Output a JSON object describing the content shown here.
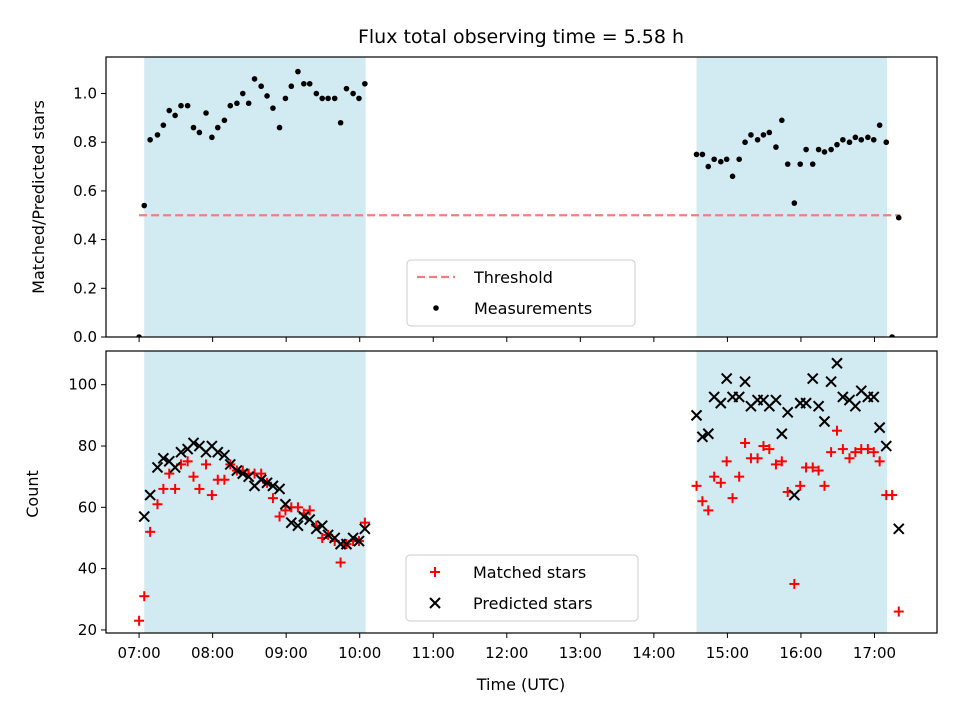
{
  "chart_data": {
    "type": "scatter",
    "title": "Flux total observing time = 5.58 h",
    "xlabel": "Time (UTC)",
    "x_ticks": [
      "07:00",
      "08:00",
      "09:00",
      "10:00",
      "11:00",
      "12:00",
      "13:00",
      "14:00",
      "15:00",
      "16:00",
      "17:00"
    ],
    "x_range_hours": [
      6.55,
      17.85
    ],
    "shaded_intervals_hours": [
      [
        7.07,
        10.08
      ],
      [
        14.58,
        17.17
      ]
    ],
    "shade_color": "#add8e6",
    "panels": [
      {
        "ylabel": "Matched/Predicted stars",
        "ylim": [
          0,
          1.15
        ],
        "y_ticks": [
          0.0,
          0.2,
          0.4,
          0.6,
          0.8,
          1.0
        ],
        "threshold": {
          "value": 0.5,
          "x_range_hours": [
            7.0,
            17.35
          ],
          "color": "#f08080",
          "label": "Threshold"
        },
        "legend": [
          "Threshold",
          "Measurements"
        ],
        "series": [
          {
            "name": "Measurements",
            "color": "#000000",
            "x_hours": [
              7.0,
              7.07,
              7.15,
              7.25,
              7.33,
              7.41,
              7.49,
              7.57,
              7.66,
              7.74,
              7.82,
              7.91,
              7.99,
              8.07,
              8.16,
              8.24,
              8.33,
              8.41,
              8.49,
              8.57,
              8.66,
              8.74,
              8.82,
              8.91,
              8.99,
              9.07,
              9.16,
              9.24,
              9.32,
              9.41,
              9.49,
              9.57,
              9.66,
              9.74,
              9.82,
              9.91,
              9.99,
              10.07,
              14.58,
              14.66,
              14.74,
              14.82,
              14.91,
              14.99,
              15.07,
              15.16,
              15.24,
              15.32,
              15.41,
              15.49,
              15.57,
              15.66,
              15.74,
              15.82,
              15.91,
              15.99,
              16.07,
              16.16,
              16.24,
              16.32,
              16.41,
              16.49,
              16.57,
              16.66,
              16.74,
              16.82,
              16.91,
              16.99,
              17.07,
              17.16,
              17.24,
              17.33
            ],
            "y": [
              0.0,
              0.54,
              0.81,
              0.83,
              0.87,
              0.93,
              0.91,
              0.95,
              0.95,
              0.86,
              0.84,
              0.92,
              0.82,
              0.86,
              0.89,
              0.95,
              0.96,
              1.0,
              0.96,
              1.06,
              1.03,
              0.99,
              0.94,
              0.86,
              0.98,
              1.03,
              1.09,
              1.04,
              1.04,
              1.0,
              0.98,
              0.98,
              0.98,
              0.88,
              1.02,
              1.0,
              0.98,
              1.04,
              0.75,
              0.75,
              0.7,
              0.73,
              0.72,
              0.73,
              0.66,
              0.73,
              0.8,
              0.83,
              0.81,
              0.83,
              0.84,
              0.78,
              0.89,
              0.71,
              0.55,
              0.71,
              0.77,
              0.71,
              0.77,
              0.76,
              0.77,
              0.79,
              0.81,
              0.8,
              0.82,
              0.81,
              0.82,
              0.81,
              0.87,
              0.8,
              0.0,
              0.49
            ]
          }
        ]
      },
      {
        "ylabel": "Count",
        "ylim": [
          19,
          111
        ],
        "y_ticks": [
          20,
          40,
          60,
          80,
          100
        ],
        "legend": [
          "Matched stars",
          "Predicted stars"
        ],
        "series": [
          {
            "name": "Matched stars",
            "marker": "+",
            "color": "#ff0000",
            "x_hours": [
              7.0,
              7.07,
              7.15,
              7.25,
              7.33,
              7.41,
              7.49,
              7.57,
              7.66,
              7.74,
              7.82,
              7.91,
              7.99,
              8.07,
              8.16,
              8.24,
              8.33,
              8.41,
              8.49,
              8.57,
              8.66,
              8.74,
              8.82,
              8.91,
              8.99,
              9.07,
              9.16,
              9.24,
              9.32,
              9.41,
              9.49,
              9.57,
              9.66,
              9.74,
              9.82,
              9.91,
              9.99,
              10.07,
              14.58,
              14.66,
              14.74,
              14.82,
              14.91,
              14.99,
              15.07,
              15.16,
              15.24,
              15.32,
              15.41,
              15.49,
              15.57,
              15.66,
              15.74,
              15.82,
              15.91,
              15.99,
              16.07,
              16.16,
              16.24,
              16.32,
              16.41,
              16.49,
              16.57,
              16.66,
              16.74,
              16.82,
              16.91,
              16.99,
              17.07,
              17.16,
              17.24,
              17.33
            ],
            "y": [
              23,
              31,
              52,
              61,
              66,
              71,
              66,
              74,
              75,
              70,
              66,
              74,
              64,
              69,
              69,
              74,
              72,
              72,
              71,
              71,
              71,
              68,
              63,
              57,
              59,
              60,
              60,
              58,
              59,
              54,
              50,
              51,
              49,
              42,
              48,
              49,
              49,
              55,
              67,
              62,
              59,
              70,
              68,
              75,
              63,
              70,
              81,
              76,
              76,
              80,
              79,
              74,
              75,
              65,
              35,
              67,
              73,
              73,
              72,
              67,
              78,
              85,
              79,
              76,
              78,
              79,
              79,
              78,
              75,
              64,
              64,
              26
            ]
          },
          {
            "name": "Predicted stars",
            "marker": "x",
            "color": "#000000",
            "x_hours": [
              7.07,
              7.15,
              7.25,
              7.33,
              7.41,
              7.49,
              7.57,
              7.66,
              7.74,
              7.82,
              7.91,
              7.99,
              8.07,
              8.16,
              8.24,
              8.33,
              8.41,
              8.49,
              8.57,
              8.66,
              8.74,
              8.82,
              8.91,
              8.99,
              9.07,
              9.16,
              9.24,
              9.32,
              9.41,
              9.49,
              9.57,
              9.66,
              9.74,
              9.82,
              9.91,
              9.99,
              10.07,
              14.58,
              14.66,
              14.74,
              14.82,
              14.91,
              14.99,
              15.07,
              15.16,
              15.24,
              15.32,
              15.41,
              15.49,
              15.57,
              15.66,
              15.74,
              15.82,
              15.91,
              15.99,
              16.07,
              16.16,
              16.24,
              16.32,
              16.41,
              16.49,
              16.57,
              16.66,
              16.74,
              16.82,
              16.91,
              16.99,
              17.07,
              17.16,
              17.33
            ],
            "y": [
              57,
              64,
              73,
              76,
              75,
              73,
              78,
              79,
              81,
              80,
              78,
              80,
              78,
              77,
              74,
              72,
              71,
              70,
              67,
              69,
              68,
              67,
              66,
              61,
              55,
              54,
              57,
              56,
              53,
              54,
              51,
              50,
              48,
              48,
              50,
              49,
              53,
              90,
              83,
              84,
              96,
              94,
              102,
              96,
              96,
              101,
              93,
              95,
              95,
              93,
              95,
              84,
              91,
              64,
              94,
              94,
              102,
              93,
              88,
              101,
              107,
              96,
              95,
              93,
              98,
              96,
              96,
              86,
              80,
              53
            ]
          }
        ]
      }
    ]
  }
}
